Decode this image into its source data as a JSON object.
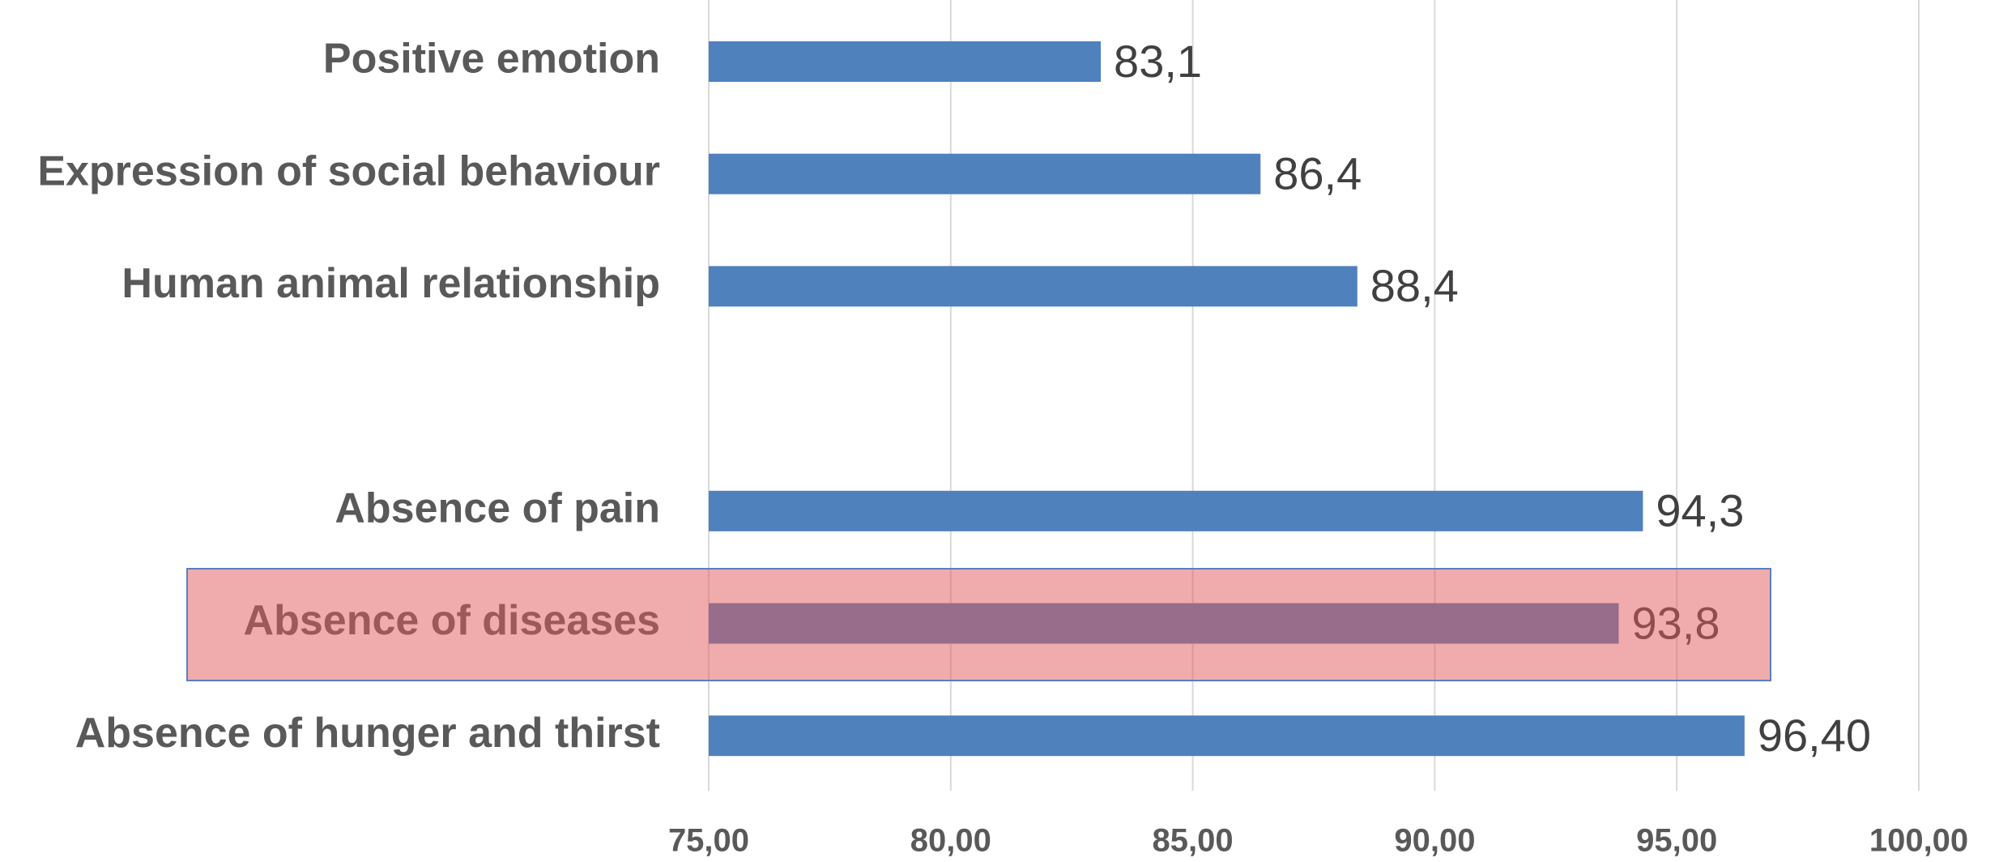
{
  "chart_data": {
    "type": "barh",
    "categories": [
      "Positive emotion",
      "Expression of social behaviour",
      "Human animal relationship",
      null,
      "Absence of pain",
      "Absence of diseases",
      "Absence of hunger and thirst"
    ],
    "values": [
      83.1,
      86.4,
      88.4,
      null,
      94.3,
      93.8,
      96.4
    ],
    "value_labels": [
      "83,1",
      "86,4",
      "88,4",
      null,
      "94,3",
      "93,8",
      "96,40"
    ],
    "color": "#4f81bd",
    "xlim": [
      75,
      100
    ],
    "xticks": [
      {
        "value": 75,
        "label": "75,00"
      },
      {
        "value": 80,
        "label": "80,00"
      },
      {
        "value": 85,
        "label": "85,00"
      },
      {
        "value": 90,
        "label": "90,00"
      },
      {
        "value": 95,
        "label": "95,00"
      },
      {
        "value": 100,
        "label": "100,00"
      }
    ],
    "grid": true
  }
}
